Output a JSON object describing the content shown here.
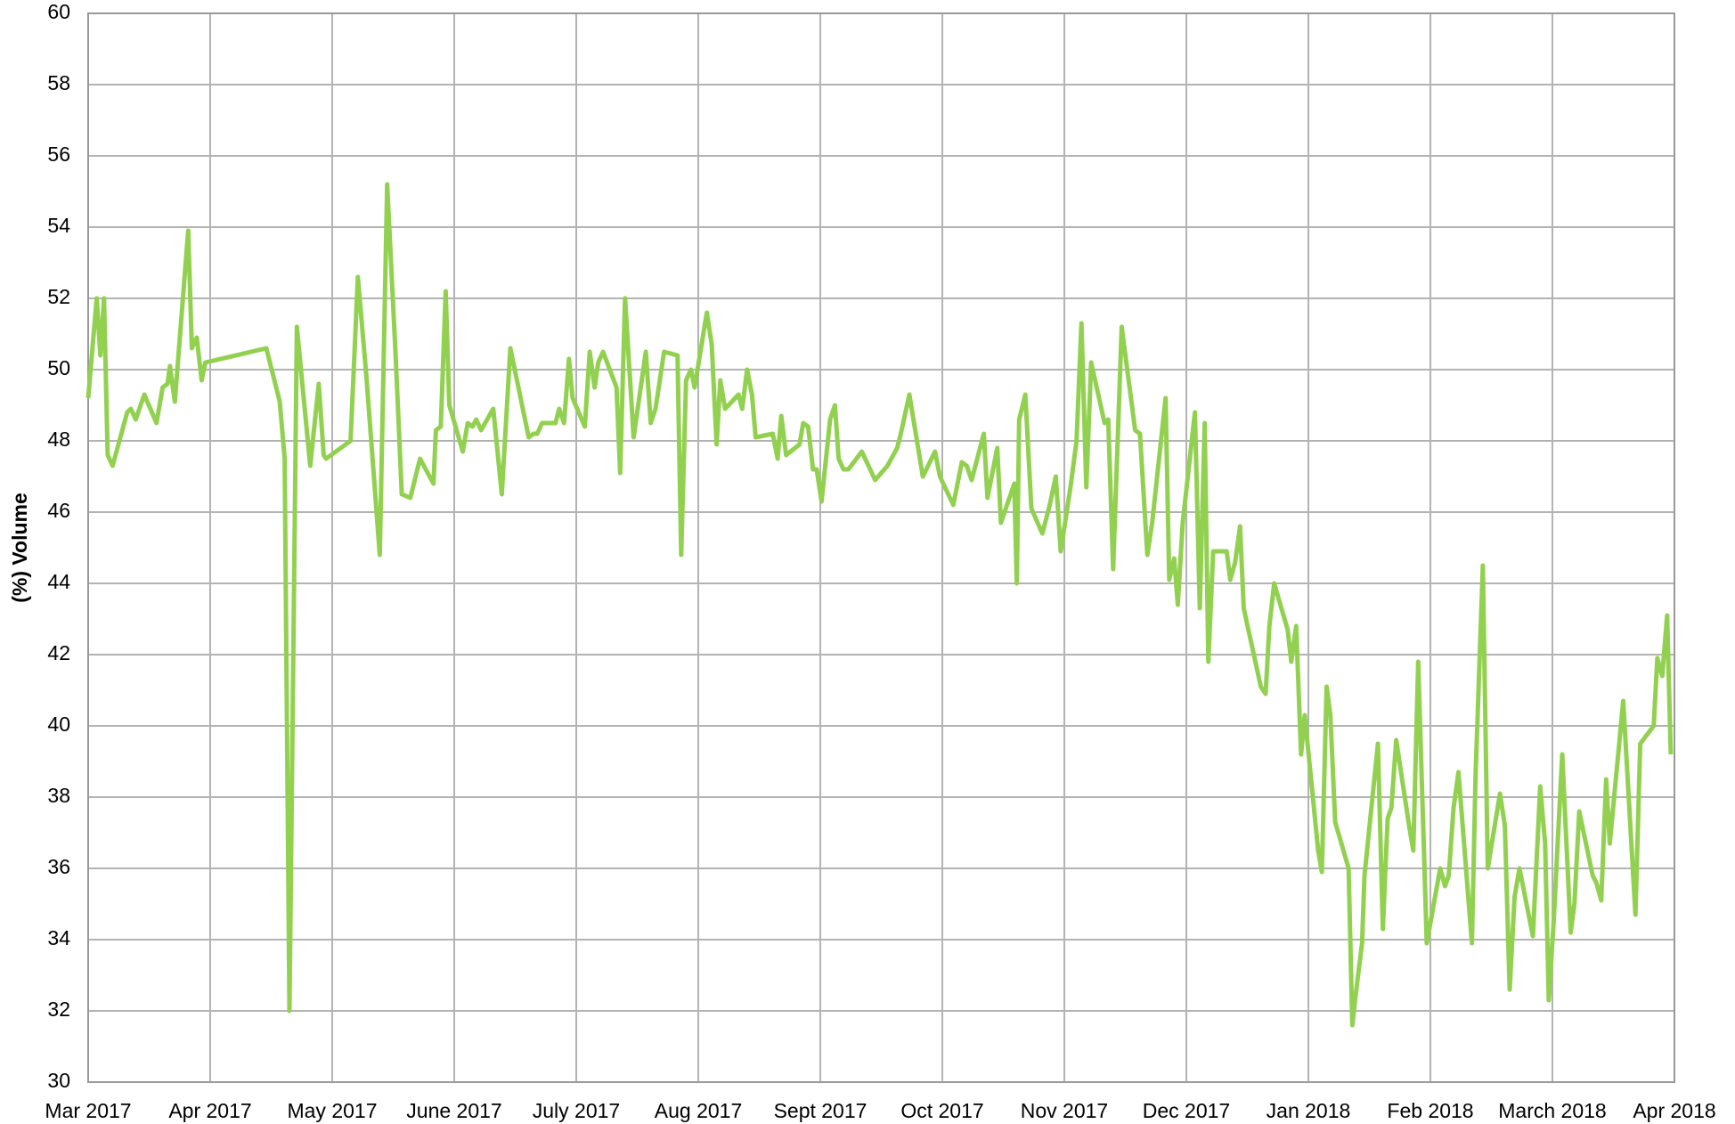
{
  "chart_data": {
    "type": "line",
    "y_label": "(%) Volume",
    "xlim": [
      0,
      13
    ],
    "xticks": [
      {
        "value": 0,
        "label": "Mar 2017"
      },
      {
        "value": 1,
        "label": "Apr 2017"
      },
      {
        "value": 2,
        "label": "May 2017"
      },
      {
        "value": 3,
        "label": "June 2017"
      },
      {
        "value": 4,
        "label": "July 2017"
      },
      {
        "value": 5,
        "label": "Aug 2017"
      },
      {
        "value": 6,
        "label": "Sept 2017"
      },
      {
        "value": 7,
        "label": "Oct 2017"
      },
      {
        "value": 8,
        "label": "Nov 2017"
      },
      {
        "value": 9,
        "label": "Dec 2017"
      },
      {
        "value": 10,
        "label": "Jan 2018"
      },
      {
        "value": 11,
        "label": "Feb 2018"
      },
      {
        "value": 12,
        "label": "March 2018"
      },
      {
        "value": 13,
        "label": "Apr 2018"
      }
    ],
    "ylim": [
      30,
      60
    ],
    "yticks": [
      30,
      32,
      34,
      36,
      38,
      40,
      42,
      44,
      46,
      48,
      50,
      52,
      54,
      56,
      58,
      60
    ],
    "grid": true,
    "color": "#92d050",
    "x": [
      0,
      0.07,
      0.1,
      0.13,
      0.16,
      0.2,
      0.32,
      0.35,
      0.39,
      0.46,
      0.56,
      0.61,
      0.65,
      0.67,
      0.71,
      0.82,
      0.85,
      0.89,
      0.93,
      0.96,
      1.46,
      1.57,
      1.61,
      1.65,
      1.71,
      1.82,
      1.89,
      1.93,
      1.95,
      2.15,
      2.21,
      2.28,
      2.39,
      2.45,
      2.52,
      2.57,
      2.64,
      2.72,
      2.83,
      2.85,
      2.89,
      2.93,
      2.96,
      3.07,
      3.11,
      3.15,
      3.18,
      3.22,
      3.32,
      3.39,
      3.46,
      3.61,
      3.65,
      3.68,
      3.72,
      3.83,
      3.86,
      3.9,
      3.94,
      3.97,
      4.07,
      4.11,
      4.15,
      4.18,
      4.22,
      4.33,
      4.36,
      4.4,
      4.47,
      4.57,
      4.61,
      4.65,
      4.72,
      4.83,
      4.86,
      4.9,
      4.94,
      4.97,
      5.07,
      5.11,
      5.15,
      5.18,
      5.22,
      5.33,
      5.36,
      5.4,
      5.44,
      5.47,
      5.61,
      5.65,
      5.68,
      5.72,
      5.83,
      5.86,
      5.9,
      5.94,
      5.97,
      6.01,
      6.08,
      6.12,
      6.15,
      6.19,
      6.23,
      6.34,
      6.45,
      6.55,
      6.63,
      6.66,
      6.73,
      6.84,
      6.94,
      6.98,
      7.09,
      7.16,
      7.2,
      7.24,
      7.34,
      7.37,
      7.45,
      7.48,
      7.59,
      7.61,
      7.63,
      7.68,
      7.73,
      7.82,
      7.88,
      7.93,
      7.97,
      8.05,
      8.1,
      8.14,
      8.18,
      8.22,
      8.33,
      8.36,
      8.4,
      8.47,
      8.58,
      8.62,
      8.68,
      8.72,
      8.83,
      8.86,
      8.9,
      8.93,
      8.97,
      9.07,
      9.11,
      9.15,
      9.18,
      9.22,
      9.33,
      9.36,
      9.4,
      9.44,
      9.47,
      9.61,
      9.65,
      9.68,
      9.72,
      9.83,
      9.86,
      9.9,
      9.94,
      9.97,
      10.08,
      10.11,
      10.15,
      10.18,
      10.22,
      10.33,
      10.36,
      10.4,
      10.44,
      10.46,
      10.57,
      10.61,
      10.65,
      10.68,
      10.72,
      10.83,
      10.86,
      10.9,
      10.97,
      11.08,
      11.12,
      11.15,
      11.19,
      11.23,
      11.34,
      11.37,
      11.43,
      11.47,
      11.57,
      11.61,
      11.65,
      11.69,
      11.73,
      11.84,
      11.9,
      11.94,
      11.97,
      12.01,
      12.08,
      12.15,
      12.18,
      12.22,
      12.33,
      12.36,
      12.4,
      12.44,
      12.47,
      12.58,
      12.68,
      12.72,
      12.83,
      12.86,
      12.9,
      12.94,
      12.97
    ],
    "values": [
      49.2,
      52.0,
      50.4,
      52.0,
      47.6,
      47.3,
      48.8,
      48.9,
      48.6,
      49.3,
      48.5,
      49.5,
      49.6,
      50.1,
      49.1,
      53.9,
      50.6,
      50.9,
      49.7,
      50.2,
      50.6,
      49.1,
      47.5,
      32.0,
      51.2,
      47.3,
      49.6,
      47.6,
      47.5,
      48.0,
      52.6,
      49.8,
      44.8,
      55.2,
      50.4,
      46.5,
      46.4,
      47.5,
      46.8,
      48.3,
      48.4,
      52.2,
      49.0,
      47.7,
      48.5,
      48.4,
      48.6,
      48.3,
      48.9,
      46.5,
      50.6,
      48.1,
      48.2,
      48.2,
      48.5,
      48.5,
      48.9,
      48.5,
      50.3,
      49.2,
      48.4,
      50.5,
      49.5,
      50.2,
      50.5,
      49.5,
      47.1,
      52.0,
      48.1,
      50.5,
      48.5,
      48.9,
      50.5,
      50.4,
      44.8,
      49.7,
      50.0,
      49.5,
      51.6,
      50.7,
      47.9,
      49.7,
      48.9,
      49.3,
      48.9,
      50.0,
      49.3,
      48.1,
      48.2,
      47.5,
      48.7,
      47.6,
      47.9,
      48.5,
      48.4,
      47.2,
      47.2,
      46.3,
      48.6,
      49.0,
      47.5,
      47.2,
      47.2,
      47.7,
      46.9,
      47.3,
      47.8,
      48.2,
      49.3,
      47.0,
      47.7,
      47.0,
      46.2,
      47.4,
      47.3,
      46.9,
      48.2,
      46.4,
      47.8,
      45.7,
      46.8,
      44.0,
      48.6,
      49.3,
      46.1,
      45.4,
      46.2,
      47.0,
      44.9,
      46.7,
      48.0,
      51.3,
      46.7,
      50.2,
      48.5,
      48.6,
      44.4,
      51.2,
      48.3,
      48.2,
      44.8,
      45.7,
      49.2,
      44.1,
      44.7,
      43.4,
      45.7,
      48.8,
      43.3,
      48.5,
      41.8,
      44.9,
      44.9,
      44.1,
      44.6,
      45.6,
      43.3,
      41.1,
      40.9,
      42.8,
      44.0,
      42.7,
      41.8,
      42.8,
      39.2,
      40.3,
      36.5,
      35.9,
      41.1,
      40.3,
      37.3,
      36.0,
      31.6,
      32.8,
      33.9,
      35.8,
      39.5,
      34.3,
      37.4,
      37.7,
      39.6,
      37.1,
      36.5,
      41.8,
      33.9,
      36.0,
      35.5,
      35.8,
      37.7,
      38.7,
      33.9,
      38.6,
      44.5,
      36.0,
      38.1,
      37.2,
      32.6,
      35.2,
      36.0,
      34.1,
      38.3,
      36.7,
      32.3,
      34.5,
      39.2,
      34.2,
      35.0,
      37.6,
      35.8,
      35.6,
      35.1,
      38.5,
      36.7,
      40.7,
      34.7,
      39.5,
      40.0,
      41.9,
      41.4,
      43.1,
      39.2
    ]
  }
}
